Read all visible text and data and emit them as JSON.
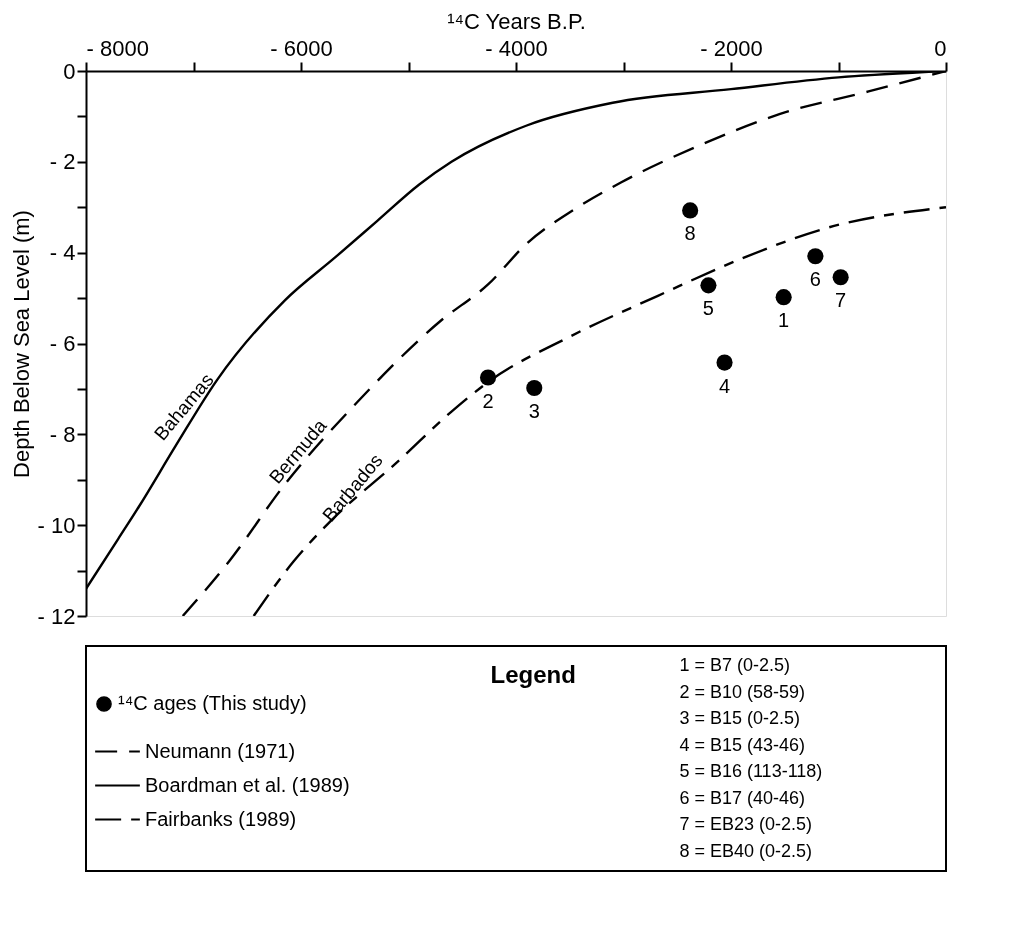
{
  "chart_data": {
    "type": "line",
    "xlabel": "¹⁴C Years B.P.",
    "ylabel": "Depth Below Sea Level (m)",
    "legend_title": "Legend",
    "legend": "bottom",
    "xlim": [
      -8000,
      0
    ],
    "xticks": [
      {
        "value": -8000,
        "label": "- 8000"
      },
      {
        "value": -7000,
        "label": null
      },
      {
        "value": -6000,
        "label": "- 6000"
      },
      {
        "value": -5000,
        "label": null
      },
      {
        "value": -4000,
        "label": "- 4000"
      },
      {
        "value": -3000,
        "label": null
      },
      {
        "value": -2000,
        "label": "- 2000"
      },
      {
        "value": -1000,
        "label": null
      },
      0
    ],
    "ylim": [
      -12,
      0
    ],
    "yticks": [
      0,
      {
        "value": -1,
        "label": null
      },
      {
        "value": -2,
        "label": "- 2"
      },
      {
        "value": -3,
        "label": null
      },
      {
        "value": -4,
        "label": "- 4"
      },
      {
        "value": -5,
        "label": null
      },
      {
        "value": -6,
        "label": "- 6"
      },
      {
        "value": -7,
        "label": null
      },
      {
        "value": -8,
        "label": "- 8"
      },
      {
        "value": -9,
        "label": null
      },
      {
        "value": -10,
        "label": "- 10"
      },
      {
        "value": -11,
        "label": null
      },
      {
        "value": -12,
        "label": "- 12"
      }
    ],
    "series": [
      {
        "name": "¹⁴C ages  (This study)",
        "type": "scatter",
        "marker": "circle",
        "color": "#000000",
        "x": [
          -1510,
          -4260,
          -3830,
          -2060,
          -2210,
          -1215,
          -980,
          -2380
        ],
        "values": [
          -4.98,
          -6.75,
          -6.98,
          -6.42,
          -4.72,
          -4.08,
          -4.54,
          -3.07
        ]
      },
      {
        "name": "Neumann (1971)",
        "type": "line",
        "line_style": "dashed",
        "color": "#000000",
        "x": [
          -7100,
          -6670,
          -6150,
          -5480,
          -4700,
          -4260,
          -3900,
          -3460,
          -3020,
          -2255,
          -1550,
          -720,
          0
        ],
        "values": [
          -12,
          -10.8,
          -9.1,
          -7.3,
          -5.5,
          -4.7,
          -3.8,
          -3.05,
          -2.45,
          -1.6,
          -0.95,
          -0.45,
          0
        ]
      },
      {
        "name": "Boardman et al. (1989)",
        "type": "line",
        "line_style": "solid",
        "color": "#000000",
        "x": [
          -8000,
          -7700,
          -7510,
          -7165,
          -6780,
          -6150,
          -5680,
          -5290,
          -4900,
          -4600,
          -3900,
          -3100,
          -2000,
          -1000,
          0
        ],
        "values": [
          -11.4,
          -10.3,
          -9.6,
          -8.25,
          -6.8,
          -5.05,
          -4.1,
          -3.3,
          -2.5,
          -2.0,
          -1.2,
          -0.7,
          -0.4,
          -0.14,
          0
        ]
      },
      {
        "name": "Fairbanks (1989)",
        "type": "line",
        "line_style": "dashed",
        "color": "#000000",
        "x": [
          -6440,
          -6070,
          -5720,
          -5100,
          -4600,
          -4260,
          -3500,
          -2680,
          -1850,
          -1100,
          0
        ],
        "values": [
          -12,
          -10.8,
          -9.9,
          -8.6,
          -7.5,
          -6.85,
          -5.85,
          -4.95,
          -4.08,
          -3.45,
          -3.0
        ]
      }
    ],
    "annotations": [
      {
        "text": "Bahamas",
        "x": -6930,
        "y": -7.37
      },
      {
        "text": "Bermuda",
        "x": -5870,
        "y": -8.35
      },
      {
        "text": "Barbados",
        "x": -5360,
        "y": -9.15
      },
      {
        "text": "1",
        "x": -1510,
        "y": -4.98
      },
      {
        "text": "2",
        "x": -4260,
        "y": -6.75
      },
      {
        "text": "3",
        "x": -3830,
        "y": -6.98
      },
      {
        "text": "4",
        "x": -2060,
        "y": -6.42
      },
      {
        "text": "5",
        "x": -2210,
        "y": -4.72
      },
      {
        "text": "6",
        "x": -1215,
        "y": -4.08
      },
      {
        "text": "7",
        "x": -980,
        "y": -4.54
      },
      {
        "text": "8",
        "x": -2380,
        "y": -3.07
      },
      "1 = B7 (0-2.5)",
      "2 = B10 (58-59)",
      "3 = B15 (0-2.5)",
      "4 = B15 (43-46)",
      "5 = B16 (113-118)",
      "6 = B17 (40-46)",
      "7 = EB23 (0-2.5)",
      "8 = EB40 (0-2.5)"
    ]
  }
}
